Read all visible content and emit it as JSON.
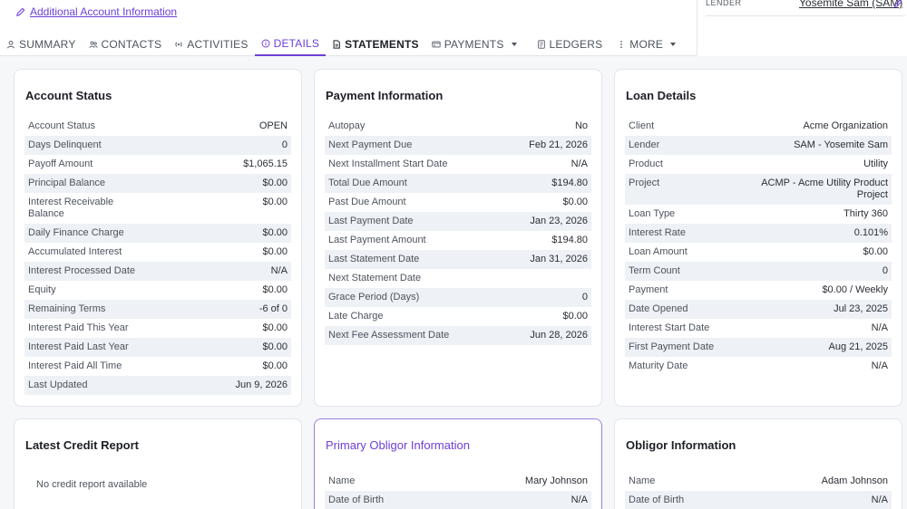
{
  "header": {
    "additional_info_link": "Additional Account Information",
    "lender_label": "LENDER",
    "lender_value": "Yosemite Sam (SAM)"
  },
  "tabs": [
    {
      "label": "SUMMARY",
      "icon": "user-icon"
    },
    {
      "label": "CONTACTS",
      "icon": "contacts-icon"
    },
    {
      "label": "ACTIVITIES",
      "icon": "activity-icon"
    },
    {
      "label": "DETAILS",
      "icon": "info-icon",
      "active": true
    },
    {
      "label": "STATEMENTS",
      "icon": "document-icon"
    },
    {
      "label": "PAYMENTS",
      "icon": "payment-icon",
      "dropdown": true
    },
    {
      "label": "LEDGERS",
      "icon": "ledger-icon"
    },
    {
      "label": "MORE",
      "icon": "more-icon",
      "dropdown": true
    }
  ],
  "account_status": {
    "title": "Account Status",
    "rows": [
      {
        "label": "Account Status",
        "value": "OPEN"
      },
      {
        "label": "Days Delinquent",
        "value": "0"
      },
      {
        "label": "Payoff Amount",
        "value": "$1,065.15"
      },
      {
        "label": "Principal Balance",
        "value": "$0.00"
      },
      {
        "label": "Interest Receivable Balance",
        "value": "$0.00"
      },
      {
        "label": "Daily Finance Charge",
        "value": "$0.00"
      },
      {
        "label": "Accumulated Interest",
        "value": "$0.00"
      },
      {
        "label": "Interest Processed Date",
        "value": "N/A"
      },
      {
        "label": "Equity",
        "value": "$0.00"
      },
      {
        "label": "Remaining Terms",
        "value": "-6 of 0"
      },
      {
        "label": "Interest Paid This Year",
        "value": "$0.00"
      },
      {
        "label": "Interest Paid Last Year",
        "value": "$0.00"
      },
      {
        "label": "Interest Paid All Time",
        "value": "$0.00"
      },
      {
        "label": "Last Updated",
        "value": "Jun 9, 2026"
      }
    ]
  },
  "payment_information": {
    "title": "Payment Information",
    "rows": [
      {
        "label": "Autopay",
        "value": "No"
      },
      {
        "label": "Next Payment Due",
        "value": "Feb 21, 2026"
      },
      {
        "label": "Next Installment Start Date",
        "value": "N/A"
      },
      {
        "label": "Total Due Amount",
        "value": "$194.80"
      },
      {
        "label": "Past Due Amount",
        "value": "$0.00"
      },
      {
        "label": "Last Payment Date",
        "value": "Jan 23, 2026"
      },
      {
        "label": "Last Payment Amount",
        "value": "$194.80"
      },
      {
        "label": "Last Statement Date",
        "value": "Jan 31, 2026"
      },
      {
        "label": "Next Statement Date",
        "value": ""
      },
      {
        "label": "Grace Period (Days)",
        "value": "0"
      },
      {
        "label": "Late Charge",
        "value": "$0.00"
      },
      {
        "label": "Next Fee Assessment Date",
        "value": "Jun 28, 2026"
      }
    ]
  },
  "loan_details": {
    "title": "Loan Details",
    "rows": [
      {
        "label": "Client",
        "value": "Acme Organization"
      },
      {
        "label": "Lender",
        "value": "SAM - Yosemite Sam"
      },
      {
        "label": "Product",
        "value": "Utility"
      },
      {
        "label": "Project",
        "value": "ACMP - Acme Utility Product Project"
      },
      {
        "label": "Loan Type",
        "value": "Thirty 360"
      },
      {
        "label": "Interest Rate",
        "value": "0.101%"
      },
      {
        "label": "Loan Amount",
        "value": "$0.00"
      },
      {
        "label": "Term Count",
        "value": "0"
      },
      {
        "label": "Payment",
        "value": "$0.00 / Weekly"
      },
      {
        "label": "Date Opened",
        "value": "Jul 23, 2025"
      },
      {
        "label": "Interest Start Date",
        "value": "N/A"
      },
      {
        "label": "First Payment Date",
        "value": "Aug 21, 2025"
      },
      {
        "label": "Maturity Date",
        "value": "N/A"
      }
    ]
  },
  "credit_report": {
    "title": "Latest Credit Report",
    "empty_text": "No credit report available"
  },
  "primary_obligor": {
    "title": "Primary Obligor Information",
    "rows": [
      {
        "label": "Name",
        "value": "Mary Johnson"
      },
      {
        "label": "Date of Birth",
        "value": "N/A"
      }
    ]
  },
  "obligor": {
    "title": "Obligor Information",
    "rows": [
      {
        "label": "Name",
        "value": "Adam Johnson"
      },
      {
        "label": "Date of Birth",
        "value": "N/A"
      }
    ]
  }
}
